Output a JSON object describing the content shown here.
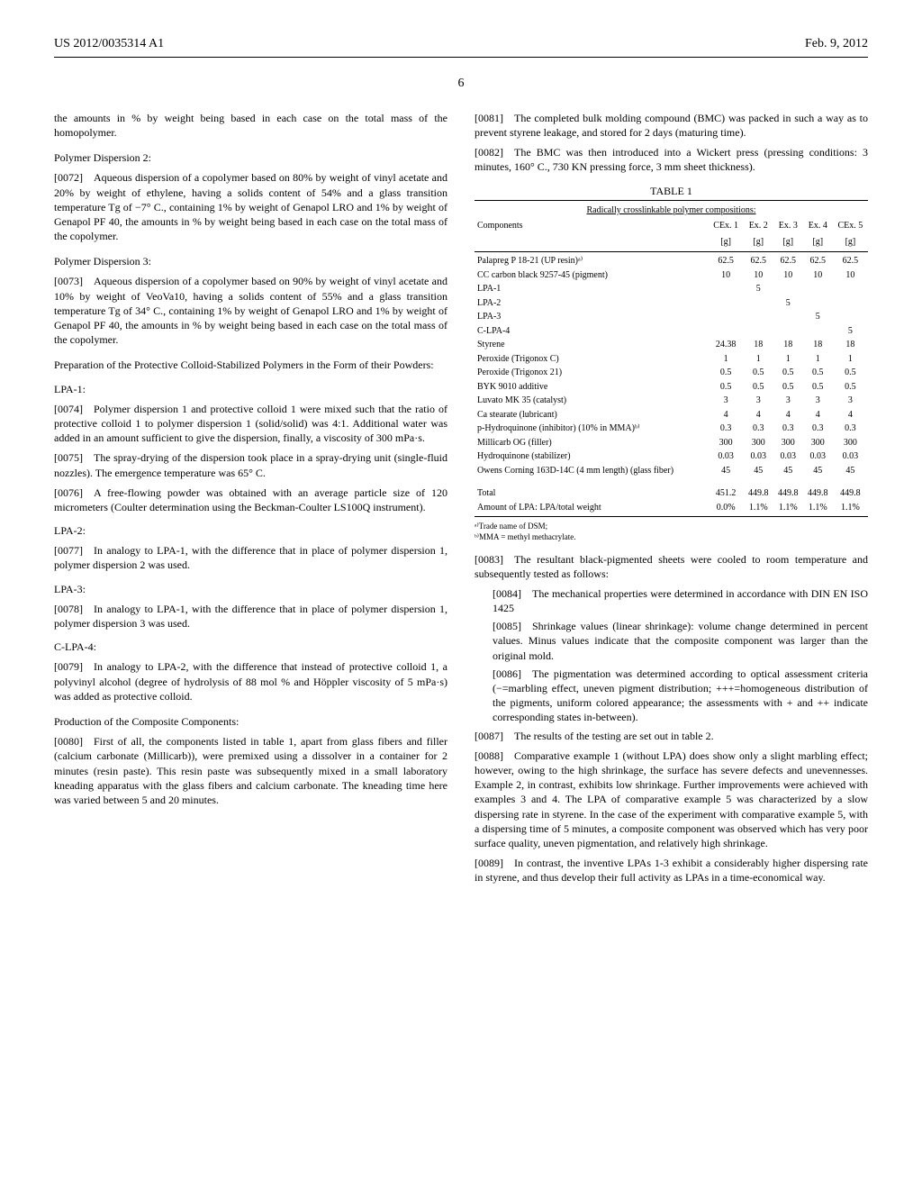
{
  "header": {
    "left": "US 2012/0035314 A1",
    "right": "Feb. 9, 2012"
  },
  "page_number": "6",
  "col1": {
    "p0": "the amounts in % by weight being based in each case on the total mass of the homopolymer.",
    "h1": "Polymer Dispersion 2:",
    "p1": "[0072] Aqueous dispersion of a copolymer based on 80% by weight of vinyl acetate and 20% by weight of ethylene, having a solids content of 54% and a glass transition temperature Tg of −7° C., containing 1% by weight of Genapol LRO and 1% by weight of Genapol PF 40, the amounts in % by weight being based in each case on the total mass of the copolymer.",
    "h2": "Polymer Dispersion 3:",
    "p2": "[0073] Aqueous dispersion of a copolymer based on 90% by weight of vinyl acetate and 10% by weight of VeoVa10, having a solids content of 55% and a glass transition temperature Tg of 34° C., containing 1% by weight of Genapol LRO and 1% by weight of Genapol PF 40, the amounts in % by weight being based in each case on the total mass of the copolymer.",
    "h3": "Preparation of the Protective Colloid-Stabilized Polymers in the Form of their Powders:",
    "h4": "LPA-1:",
    "p3": "[0074] Polymer dispersion 1 and protective colloid 1 were mixed such that the ratio of protective colloid 1 to polymer dispersion 1 (solid/solid) was 4:1. Additional water was added in an amount sufficient to give the dispersion, finally, a viscosity of 300 mPa·s.",
    "p4": "[0075] The spray-drying of the dispersion took place in a spray-drying unit (single-fluid nozzles). The emergence temperature was 65° C.",
    "p5": "[0076] A free-flowing powder was obtained with an average particle size of 120 micrometers (Coulter determination using the Beckman-Coulter LS100Q instrument).",
    "h5": "LPA-2:",
    "p6": "[0077] In analogy to LPA-1, with the difference that in place of polymer dispersion 1, polymer dispersion 2 was used.",
    "h6": "LPA-3:",
    "p7": "[0078] In analogy to LPA-1, with the difference that in place of polymer dispersion 1, polymer dispersion 3 was used.",
    "h7": "C-LPA-4:",
    "p8": "[0079] In analogy to LPA-2, with the difference that instead of protective colloid 1, a polyvinyl alcohol (degree of hydrolysis of 88 mol % and Höppler viscosity of 5 mPa·s) was added as protective colloid.",
    "h8": "Production of the Composite Components:",
    "p9": "[0080] First of all, the components listed in table 1, apart from glass fibers and filler (calcium carbonate (Millicarb)), were premixed using a dissolver in a container for 2 minutes (resin paste). This resin paste was subsequently mixed in a small laboratory kneading apparatus with the glass fibers and calcium carbonate. The kneading time here was varied between 5 and 20 minutes."
  },
  "col2": {
    "p1": "[0081] The completed bulk molding compound (BMC) was packed in such a way as to prevent styrene leakage, and stored for 2 days (maturing time).",
    "p2": "[0082] The BMC was then introduced into a Wickert press (pressing conditions: 3 minutes, 160° C., 730 KN pressing force, 3 mm sheet thickness).",
    "table": {
      "caption": "TABLE 1",
      "subcaption": "Radically crosslinkable polymer compositions:",
      "columns": [
        "Components",
        "CEx. 1 [g]",
        "Ex. 2 [g]",
        "Ex. 3 [g]",
        "Ex. 4 [g]",
        "CEx. 5 [g]"
      ],
      "col_header_top": [
        "Components",
        "CEx. 1",
        "Ex. 2",
        "Ex. 3",
        "Ex. 4",
        "CEx. 5"
      ],
      "col_header_bot": [
        "",
        "[g]",
        "[g]",
        "[g]",
        "[g]",
        "[g]"
      ],
      "rows": [
        {
          "label": "Palapreg P 18-21 (UP resin)ᵃ⁾",
          "v": [
            "62.5",
            "62.5",
            "62.5",
            "62.5",
            "62.5"
          ]
        },
        {
          "label": "CC carbon black 9257-45 (pigment)",
          "v": [
            "10",
            "10",
            "10",
            "10",
            "10"
          ]
        },
        {
          "label": "LPA-1",
          "v": [
            "",
            "5",
            "",
            "",
            ""
          ]
        },
        {
          "label": "LPA-2",
          "v": [
            "",
            "",
            "5",
            "",
            ""
          ]
        },
        {
          "label": "LPA-3",
          "v": [
            "",
            "",
            "",
            "5",
            ""
          ]
        },
        {
          "label": "C-LPA-4",
          "v": [
            "",
            "",
            "",
            "",
            "5"
          ]
        },
        {
          "label": "Styrene",
          "v": [
            "24.38",
            "18",
            "18",
            "18",
            "18"
          ]
        },
        {
          "label": "Peroxide (Trigonox C)",
          "v": [
            "1",
            "1",
            "1",
            "1",
            "1"
          ]
        },
        {
          "label": "Peroxide (Trigonox 21)",
          "v": [
            "0.5",
            "0.5",
            "0.5",
            "0.5",
            "0.5"
          ]
        },
        {
          "label": "BYK 9010 additive",
          "v": [
            "0.5",
            "0.5",
            "0.5",
            "0.5",
            "0.5"
          ]
        },
        {
          "label": "Luvato MK 35 (catalyst)",
          "v": [
            "3",
            "3",
            "3",
            "3",
            "3"
          ]
        },
        {
          "label": "Ca stearate (lubricant)",
          "v": [
            "4",
            "4",
            "4",
            "4",
            "4"
          ]
        },
        {
          "label": "p-Hydroquinone (inhibitor) (10% in MMA)ᵇ⁾",
          "v": [
            "0.3",
            "0.3",
            "0.3",
            "0.3",
            "0.3"
          ]
        },
        {
          "label": "Millicarb OG (filler)",
          "v": [
            "300",
            "300",
            "300",
            "300",
            "300"
          ]
        },
        {
          "label": "Hydroquinone (stabilizer)",
          "v": [
            "0.03",
            "0.03",
            "0.03",
            "0.03",
            "0.03"
          ]
        },
        {
          "label": "Owens Corning 163D-14C (4 mm length) (glass fiber)",
          "v": [
            "45",
            "45",
            "45",
            "45",
            "45"
          ]
        }
      ],
      "totals": [
        {
          "label": "Total",
          "v": [
            "451.2",
            "449.8",
            "449.8",
            "449.8",
            "449.8"
          ]
        },
        {
          "label": "Amount of LPA: LPA/total weight",
          "v": [
            "0.0%",
            "1.1%",
            "1.1%",
            "1.1%",
            "1.1%"
          ]
        }
      ],
      "footnote_a": "ᵃ⁾Trade name of DSM;",
      "footnote_b": "ᵇ⁾MMA = methyl methacrylate."
    },
    "p3": "[0083] The resultant black-pigmented sheets were cooled to room temperature and subsequently tested as follows:",
    "p4": "[0084] The mechanical properties were determined in accordance with DIN EN ISO 1425",
    "p5": "[0085] Shrinkage values (linear shrinkage): volume change determined in percent values. Minus values indicate that the composite component was larger than the original mold.",
    "p6": "[0086] The pigmentation was determined according to optical assessment criteria (−=marbling effect, uneven pigment distribution; +++=homogeneous distribution of the pigments, uniform colored appearance; the assessments with + and ++ indicate corresponding states in-between).",
    "p7": "[0087] The results of the testing are set out in table 2.",
    "p8": "[0088] Comparative example 1 (without LPA) does show only a slight marbling effect; however, owing to the high shrinkage, the surface has severe defects and unevennesses. Example 2, in contrast, exhibits low shrinkage. Further improvements were achieved with examples 3 and 4. The LPA of comparative example 5 was characterized by a slow dispersing rate in styrene. In the case of the experiment with comparative example 5, with a dispersing time of 5 minutes, a composite component was observed which has very poor surface quality, uneven pigmentation, and relatively high shrinkage.",
    "p9": "[0089] In contrast, the inventive LPAs 1-3 exhibit a considerably higher dispersing rate in styrene, and thus develop their full activity as LPAs in a time-economical way."
  }
}
